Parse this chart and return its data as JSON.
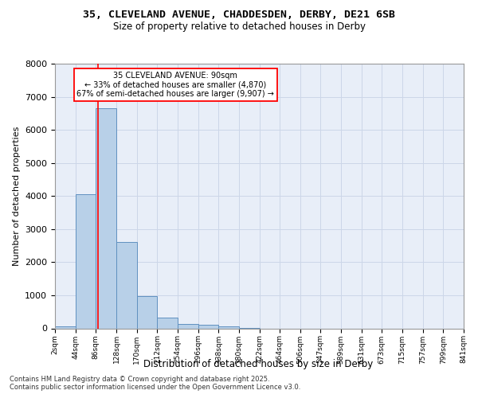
{
  "title_line1": "35, CLEVELAND AVENUE, CHADDESDEN, DERBY, DE21 6SB",
  "title_line2": "Size of property relative to detached houses in Derby",
  "xlabel": "Distribution of detached houses by size in Derby",
  "ylabel": "Number of detached properties",
  "bar_edges": [
    2,
    44,
    86,
    128,
    170,
    212,
    254,
    296,
    338,
    380,
    422,
    464,
    506,
    547,
    589,
    631,
    673,
    715,
    757,
    799,
    841
  ],
  "bar_heights": [
    60,
    4050,
    6650,
    2600,
    980,
    320,
    130,
    100,
    50,
    5,
    0,
    0,
    0,
    0,
    0,
    0,
    0,
    0,
    0,
    0
  ],
  "bar_color": "#b8d0e8",
  "bar_edge_color": "#6090c0",
  "property_size": 90,
  "property_label": "35 CLEVELAND AVENUE: 90sqm",
  "annotation_line2": "← 33% of detached houses are smaller (4,870)",
  "annotation_line3": "67% of semi-detached houses are larger (9,907) →",
  "vline_color": "red",
  "ylim": [
    0,
    8000
  ],
  "yticks": [
    0,
    1000,
    2000,
    3000,
    4000,
    5000,
    6000,
    7000,
    8000
  ],
  "tick_labels": [
    "2sqm",
    "44sqm",
    "86sqm",
    "128sqm",
    "170sqm",
    "212sqm",
    "254sqm",
    "296sqm",
    "338sqm",
    "380sqm",
    "422sqm",
    "464sqm",
    "506sqm",
    "547sqm",
    "589sqm",
    "631sqm",
    "673sqm",
    "715sqm",
    "757sqm",
    "799sqm",
    "841sqm"
  ],
  "grid_color": "#ccd6e8",
  "plot_bg": "#e8eef8",
  "footnote1": "Contains HM Land Registry data © Crown copyright and database right 2025.",
  "footnote2": "Contains public sector information licensed under the Open Government Licence v3.0."
}
